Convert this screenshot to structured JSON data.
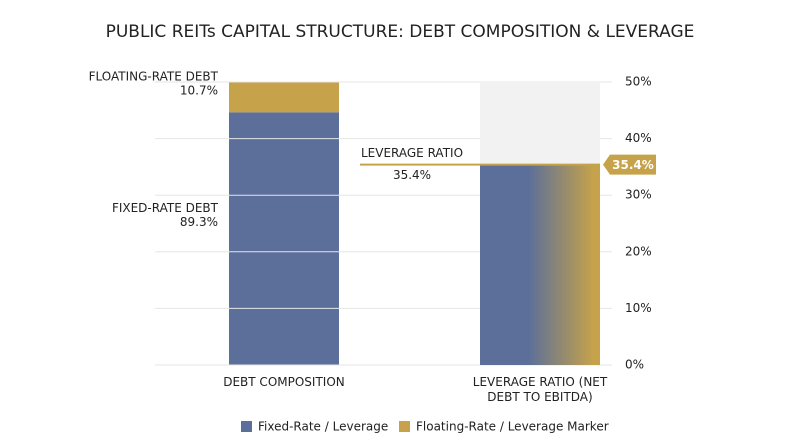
{
  "title": "PUBLIC REITs CAPITAL STRUCTURE: DEBT COMPOSITION & LEVERAGE",
  "chart_data": [
    {
      "type": "stacked_bar",
      "categories": [
        "DEBT COMPOSITION"
      ],
      "ylim": [
        0,
        100
      ],
      "series": [
        {
          "name": "FIXED-RATE DEBT",
          "color": "#5b6f9a",
          "values": [
            89.3
          ],
          "value_labels": [
            "89.3%"
          ]
        },
        {
          "name": "FLOATING-RATE DEBT",
          "color": "#c6a24a",
          "values": [
            10.7
          ],
          "value_labels": [
            "10.7%"
          ]
        }
      ]
    },
    {
      "type": "gradient_bar",
      "categories": [
        "LEVERAGE RATIO (NET DEBT TO EBITDA)"
      ],
      "values": [
        35.4
      ],
      "value_labels": [
        "35.4%"
      ],
      "annotation": "LEVERAGE RATIO",
      "colors": [
        "#5b6f9a",
        "#c6a24a"
      ],
      "marker_color": "#c6a24a",
      "background": "#f2f2f2",
      "ylim": [
        0,
        50
      ],
      "grid": true,
      "yticks": [
        {
          "value": 0,
          "label": "0%"
        },
        {
          "value": 10,
          "label": "10%"
        },
        {
          "value": 20,
          "label": "20%"
        },
        {
          "value": 30,
          "label": "30%"
        },
        {
          "value": 40,
          "label": "40%"
        },
        {
          "value": 50,
          "label": "50%"
        }
      ]
    }
  ],
  "legend": {
    "position": "bottom",
    "items": [
      {
        "name": "Fixed-Rate / Leverage",
        "color": "#5b6f9a"
      },
      {
        "name": "Floating-Rate / Leverage Marker",
        "color": "#c6a24a"
      }
    ]
  }
}
